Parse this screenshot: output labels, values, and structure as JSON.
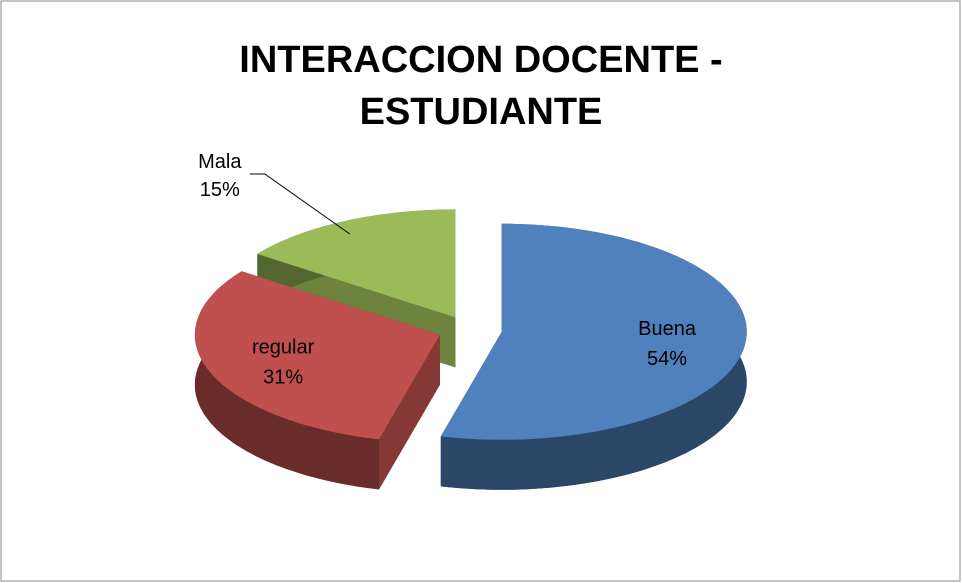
{
  "chart_data": {
    "type": "pie",
    "title": "INTERACCION DOCENTE - ESTUDIANTE",
    "categories": [
      "Buena",
      "regular",
      "Mala"
    ],
    "values": [
      54,
      31,
      15
    ],
    "value_labels": [
      "54%",
      "31%",
      "15%"
    ],
    "colors": [
      "#4f81bd",
      "#c0504d",
      "#9bbb59"
    ]
  }
}
